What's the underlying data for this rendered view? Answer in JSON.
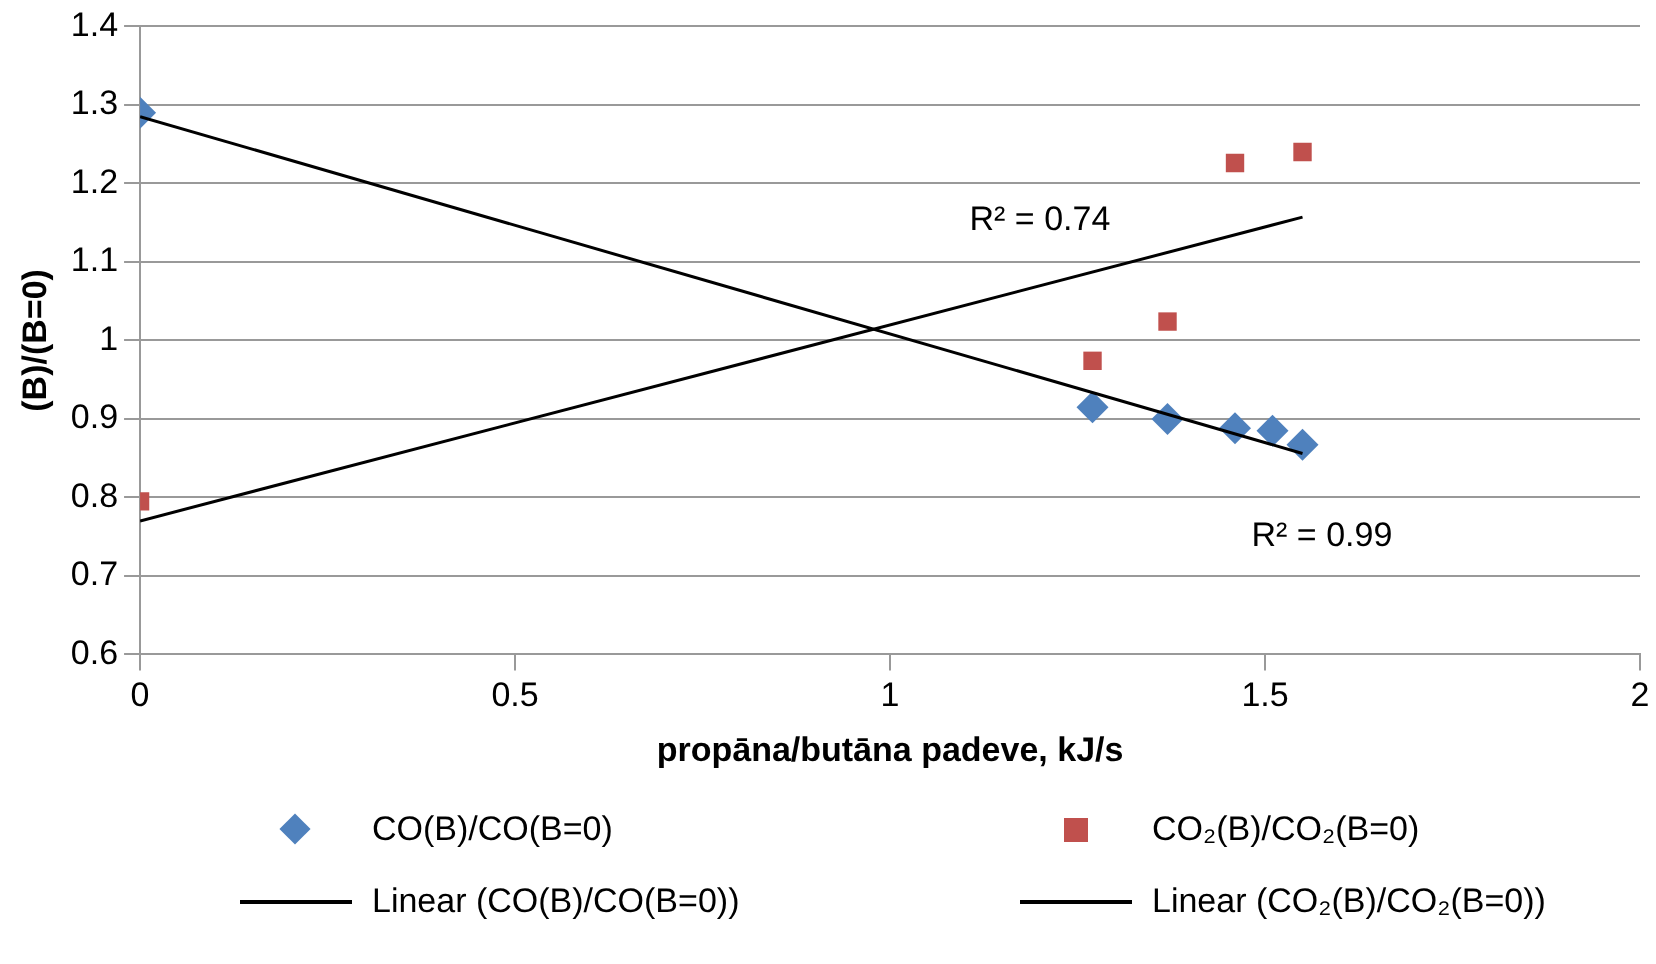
{
  "chart_data": {
    "type": "scatter",
    "xlabel": "propāna/butāna padeve, kJ/s",
    "ylabel": "(B)/(B=0)",
    "xlim": [
      0,
      2
    ],
    "xticks": [
      0,
      0.5,
      1,
      1.5,
      2
    ],
    "ylim": [
      0.6,
      1.4
    ],
    "yticks": [
      0.6,
      0.7,
      0.8,
      0.9,
      1,
      1.1,
      1.2,
      1.3,
      1.4
    ],
    "grid": "y",
    "legend": "bottom",
    "series": [
      {
        "name": "CO(B)/CO(B=0)",
        "marker": "diamond",
        "color": "#4f81bd",
        "x": [
          0,
          1.27,
          1.37,
          1.46,
          1.51,
          1.55
        ],
        "values": [
          1.29,
          0.915,
          0.9,
          0.888,
          0.885,
          0.867
        ]
      },
      {
        "name": "CO₂(B)/CO₂(B=0)",
        "marker": "square",
        "color": "#c0504d",
        "x": [
          0,
          1.27,
          1.37,
          1.46,
          1.55
        ],
        "values": [
          0.795,
          0.974,
          1.024,
          1.226,
          1.24
        ]
      },
      {
        "name": "Linear (CO(B)/CO(B=0))",
        "type": "line",
        "marker": "none",
        "color": "#000000",
        "x": [
          0,
          1.55
        ],
        "values": [
          1.285,
          0.856
        ]
      },
      {
        "name": "Linear (CO₂(B)/CO₂(B=0))",
        "type": "line",
        "marker": "none",
        "color": "#000000",
        "x": [
          0,
          1.55
        ],
        "values": [
          0.77,
          1.157
        ]
      }
    ],
    "annotations": [
      "R² = 0.74",
      "R² = 0.99"
    ]
  }
}
